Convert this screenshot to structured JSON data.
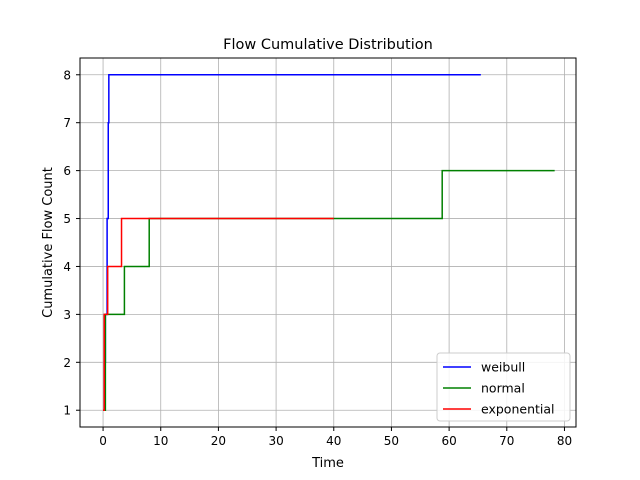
{
  "chart_data": {
    "type": "line",
    "title": "Flow Cumulative Distribution",
    "xlabel": "Time",
    "ylabel": "Cumulative Flow Count",
    "xlim": [
      -4,
      82
    ],
    "ylim": [
      0.65,
      8.35
    ],
    "xticks": [
      0,
      10,
      20,
      30,
      40,
      50,
      60,
      70,
      80
    ],
    "yticks": [
      1,
      2,
      3,
      4,
      5,
      6,
      7,
      8
    ],
    "grid": true,
    "legend_position": "lower-right",
    "step": "post",
    "series": [
      {
        "name": "weibull",
        "color": "#0000ff",
        "points": [
          [
            0,
            1
          ],
          [
            0.2,
            2
          ],
          [
            0.4,
            3
          ],
          [
            0.7,
            5
          ],
          [
            0.9,
            7
          ],
          [
            1.0,
            8
          ],
          [
            65.5,
            8
          ]
        ]
      },
      {
        "name": "normal",
        "color": "#008000",
        "points": [
          [
            0,
            1
          ],
          [
            0.4,
            3
          ],
          [
            3.7,
            4
          ],
          [
            8.0,
            5
          ],
          [
            58.8,
            6
          ],
          [
            78.3,
            6
          ]
        ]
      },
      {
        "name": "exponential",
        "color": "#ff0000",
        "points": [
          [
            0,
            1
          ],
          [
            0.2,
            3
          ],
          [
            0.8,
            4
          ],
          [
            3.2,
            5
          ],
          [
            40.0,
            5
          ]
        ]
      }
    ]
  }
}
